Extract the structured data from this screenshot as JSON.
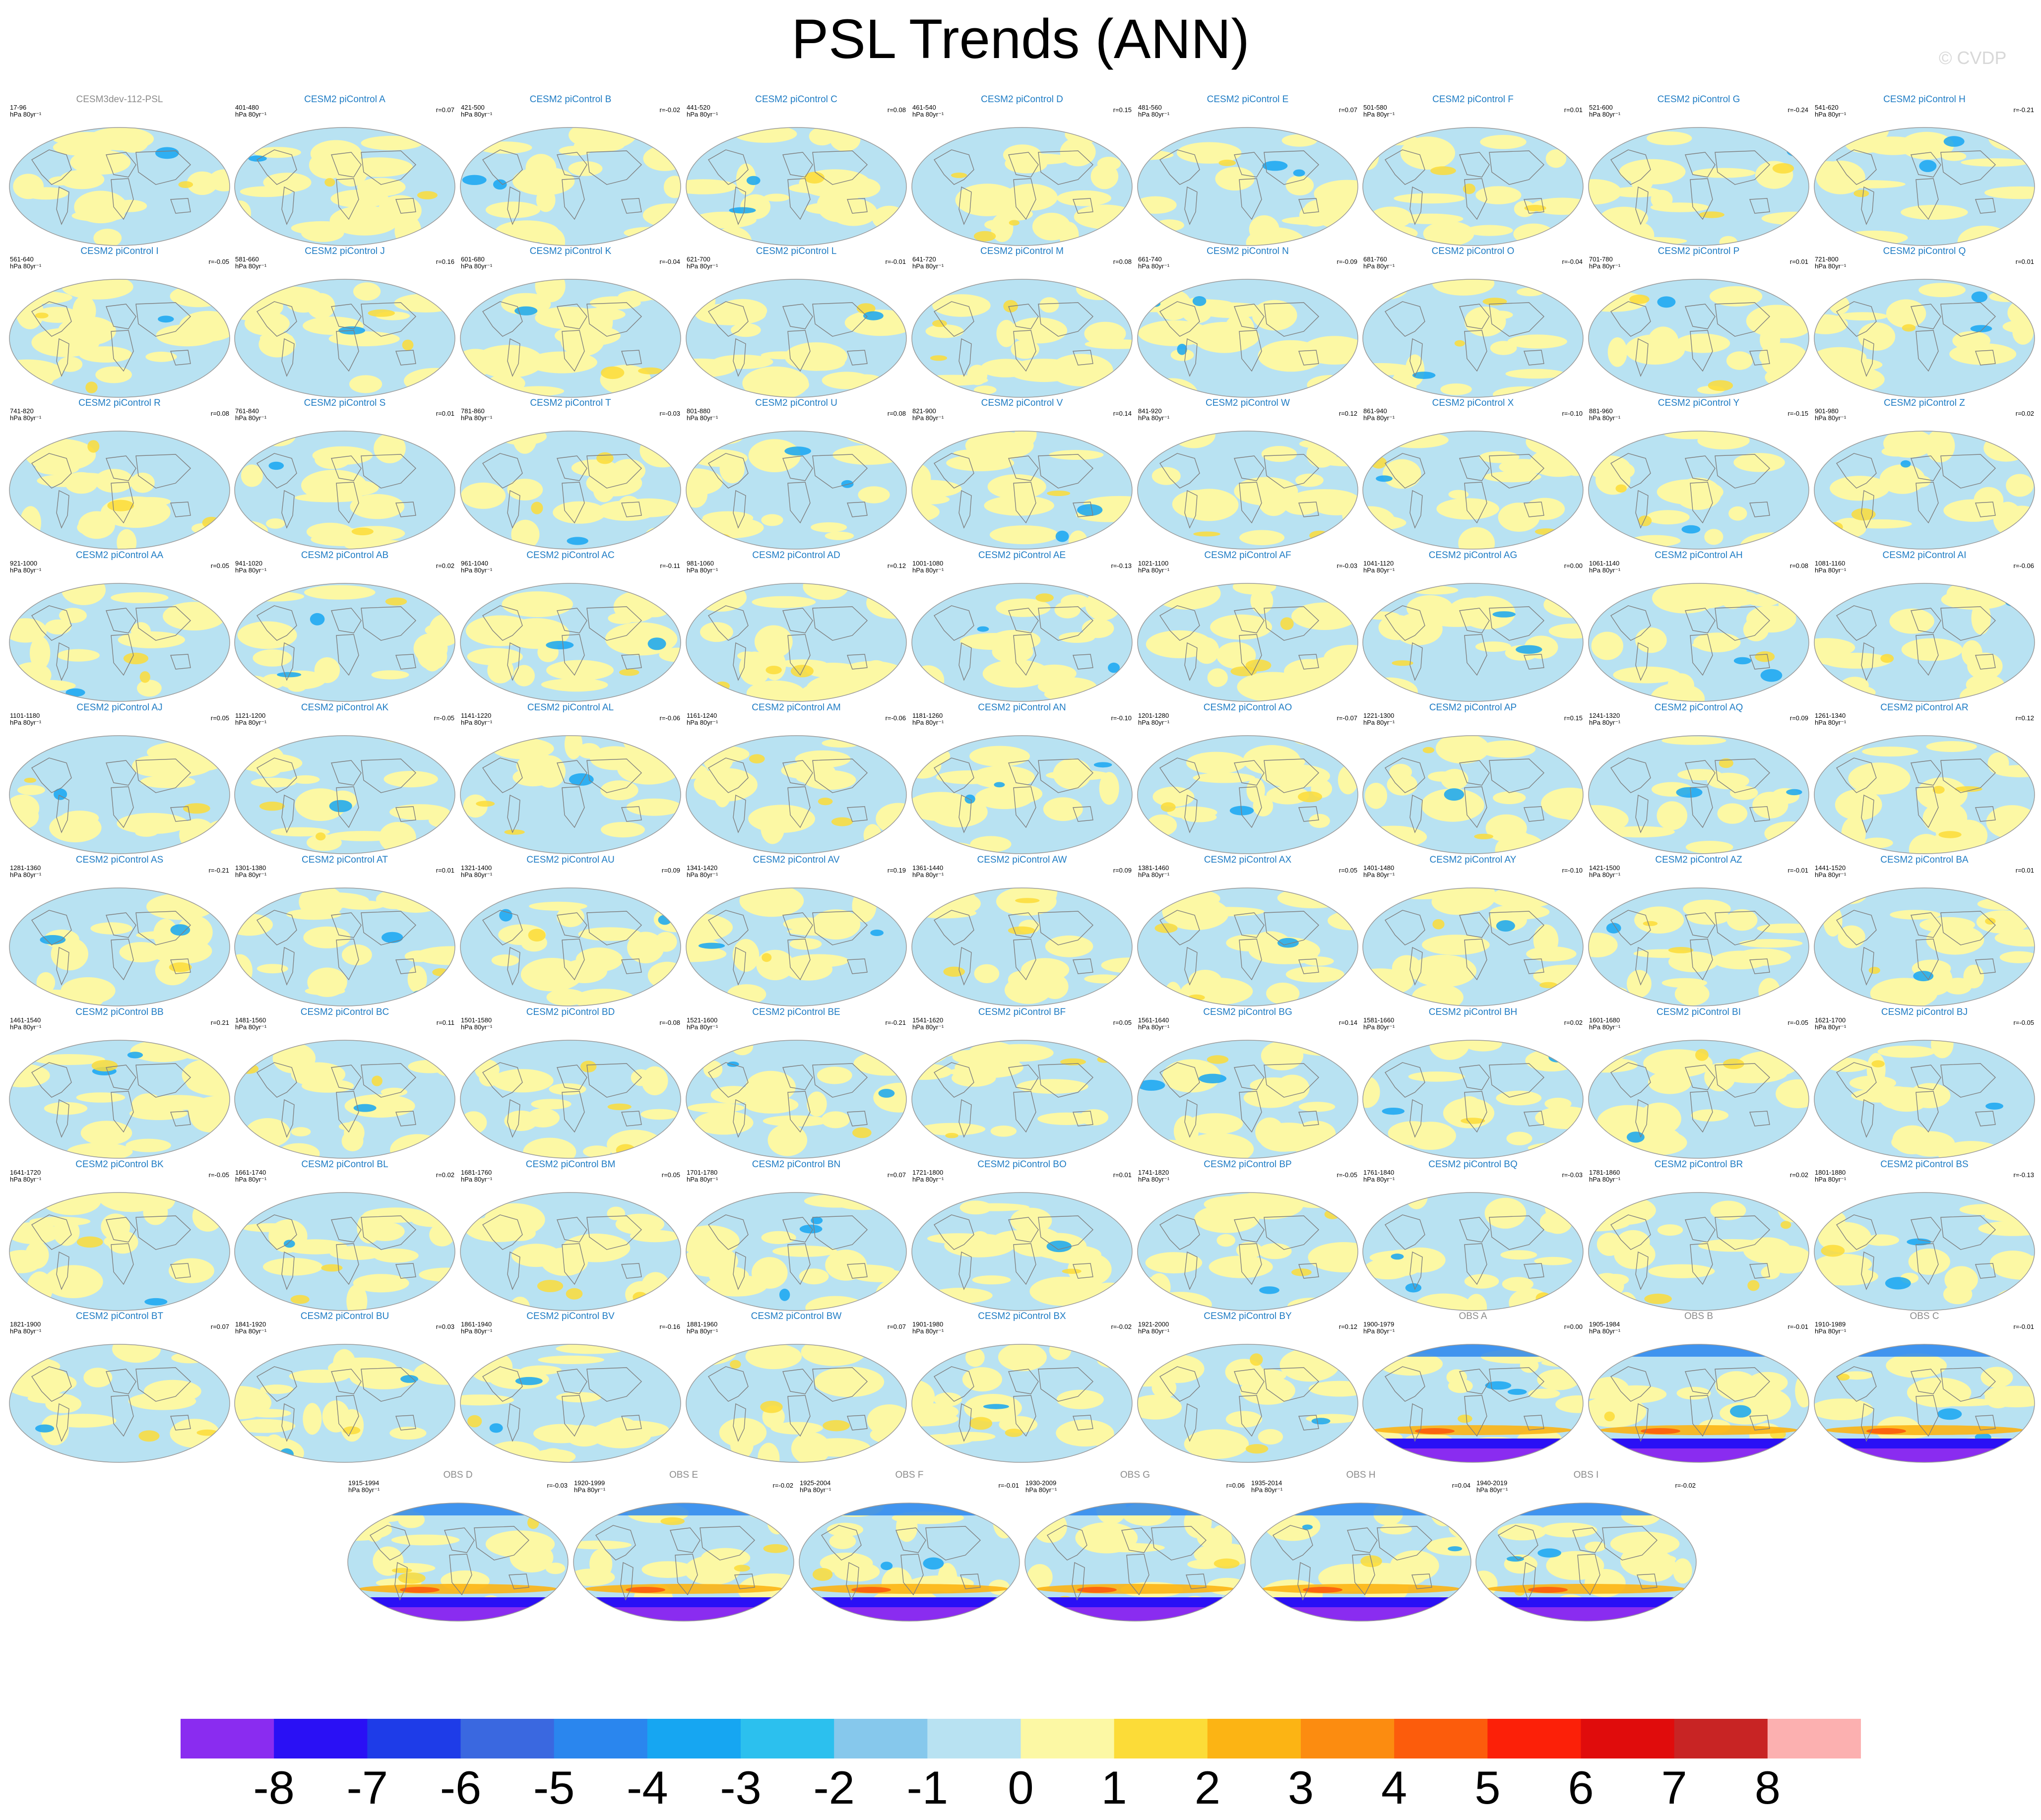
{
  "title": "PSL Trends (ANN)",
  "copyright": "© CVDP",
  "colors": {
    "title_model": "#1f7cc4",
    "title_grey": "#8c8c8c",
    "coast": "#7f7f7f"
  },
  "chart_data": {
    "type": "heatmap",
    "units": "hPa 80yr⁻¹",
    "panels": [
      {
        "title": "CESM3dev-112-PSL",
        "years": "17-96",
        "r": "",
        "kind": "ref"
      },
      {
        "title": "CESM2 piControl A",
        "years": "401-480",
        "r": "r=0.07",
        "kind": "model"
      },
      {
        "title": "CESM2 piControl B",
        "years": "421-500",
        "r": "r=-0.02",
        "kind": "model"
      },
      {
        "title": "CESM2 piControl C",
        "years": "441-520",
        "r": "r=0.08",
        "kind": "model"
      },
      {
        "title": "CESM2 piControl D",
        "years": "461-540",
        "r": "r=0.15",
        "kind": "model"
      },
      {
        "title": "CESM2 piControl E",
        "years": "481-560",
        "r": "r=0.07",
        "kind": "model"
      },
      {
        "title": "CESM2 piControl F",
        "years": "501-580",
        "r": "r=0.01",
        "kind": "model"
      },
      {
        "title": "CESM2 piControl G",
        "years": "521-600",
        "r": "r=-0.24",
        "kind": "model"
      },
      {
        "title": "CESM2 piControl H",
        "years": "541-620",
        "r": "r=-0.21",
        "kind": "model"
      },
      {
        "title": "CESM2 piControl I",
        "years": "561-640",
        "r": "r=-0.05",
        "kind": "model"
      },
      {
        "title": "CESM2 piControl J",
        "years": "581-660",
        "r": "r=0.16",
        "kind": "model"
      },
      {
        "title": "CESM2 piControl K",
        "years": "601-680",
        "r": "r=-0.04",
        "kind": "model"
      },
      {
        "title": "CESM2 piControl L",
        "years": "621-700",
        "r": "r=-0.01",
        "kind": "model"
      },
      {
        "title": "CESM2 piControl M",
        "years": "641-720",
        "r": "r=0.08",
        "kind": "model"
      },
      {
        "title": "CESM2 piControl N",
        "years": "661-740",
        "r": "r=-0.09",
        "kind": "model"
      },
      {
        "title": "CESM2 piControl O",
        "years": "681-760",
        "r": "r=-0.04",
        "kind": "model"
      },
      {
        "title": "CESM2 piControl P",
        "years": "701-780",
        "r": "r=0.01",
        "kind": "model"
      },
      {
        "title": "CESM2 piControl Q",
        "years": "721-800",
        "r": "r=0.01",
        "kind": "model"
      },
      {
        "title": "CESM2 piControl R",
        "years": "741-820",
        "r": "r=0.08",
        "kind": "model"
      },
      {
        "title": "CESM2 piControl S",
        "years": "761-840",
        "r": "r=0.01",
        "kind": "model"
      },
      {
        "title": "CESM2 piControl T",
        "years": "781-860",
        "r": "r=-0.03",
        "kind": "model"
      },
      {
        "title": "CESM2 piControl U",
        "years": "801-880",
        "r": "r=0.08",
        "kind": "model"
      },
      {
        "title": "CESM2 piControl V",
        "years": "821-900",
        "r": "r=0.14",
        "kind": "model"
      },
      {
        "title": "CESM2 piControl W",
        "years": "841-920",
        "r": "r=0.12",
        "kind": "model"
      },
      {
        "title": "CESM2 piControl X",
        "years": "861-940",
        "r": "r=-0.10",
        "kind": "model"
      },
      {
        "title": "CESM2 piControl Y",
        "years": "881-960",
        "r": "r=-0.15",
        "kind": "model"
      },
      {
        "title": "CESM2 piControl Z",
        "years": "901-980",
        "r": "r=0.02",
        "kind": "model"
      },
      {
        "title": "CESM2 piControl AA",
        "years": "921-1000",
        "r": "r=0.05",
        "kind": "model"
      },
      {
        "title": "CESM2 piControl AB",
        "years": "941-1020",
        "r": "r=0.02",
        "kind": "model"
      },
      {
        "title": "CESM2 piControl AC",
        "years": "961-1040",
        "r": "r=-0.11",
        "kind": "model"
      },
      {
        "title": "CESM2 piControl AD",
        "years": "981-1060",
        "r": "r=0.12",
        "kind": "model"
      },
      {
        "title": "CESM2 piControl AE",
        "years": "1001-1080",
        "r": "r=-0.13",
        "kind": "model"
      },
      {
        "title": "CESM2 piControl AF",
        "years": "1021-1100",
        "r": "r=-0.03",
        "kind": "model"
      },
      {
        "title": "CESM2 piControl AG",
        "years": "1041-1120",
        "r": "r=0.00",
        "kind": "model"
      },
      {
        "title": "CESM2 piControl AH",
        "years": "1061-1140",
        "r": "r=0.08",
        "kind": "model"
      },
      {
        "title": "CESM2 piControl AI",
        "years": "1081-1160",
        "r": "r=-0.06",
        "kind": "model"
      },
      {
        "title": "CESM2 piControl AJ",
        "years": "1101-1180",
        "r": "r=0.05",
        "kind": "model"
      },
      {
        "title": "CESM2 piControl AK",
        "years": "1121-1200",
        "r": "r=-0.05",
        "kind": "model"
      },
      {
        "title": "CESM2 piControl AL",
        "years": "1141-1220",
        "r": "r=-0.06",
        "kind": "model"
      },
      {
        "title": "CESM2 piControl AM",
        "years": "1161-1240",
        "r": "r=-0.06",
        "kind": "model"
      },
      {
        "title": "CESM2 piControl AN",
        "years": "1181-1260",
        "r": "r=-0.10",
        "kind": "model"
      },
      {
        "title": "CESM2 piControl AO",
        "years": "1201-1280",
        "r": "r=-0.07",
        "kind": "model"
      },
      {
        "title": "CESM2 piControl AP",
        "years": "1221-1300",
        "r": "r=0.15",
        "kind": "model"
      },
      {
        "title": "CESM2 piControl AQ",
        "years": "1241-1320",
        "r": "r=0.09",
        "kind": "model"
      },
      {
        "title": "CESM2 piControl AR",
        "years": "1261-1340",
        "r": "r=0.12",
        "kind": "model"
      },
      {
        "title": "CESM2 piControl AS",
        "years": "1281-1360",
        "r": "r=-0.21",
        "kind": "model"
      },
      {
        "title": "CESM2 piControl AT",
        "years": "1301-1380",
        "r": "r=0.01",
        "kind": "model"
      },
      {
        "title": "CESM2 piControl AU",
        "years": "1321-1400",
        "r": "r=0.09",
        "kind": "model"
      },
      {
        "title": "CESM2 piControl AV",
        "years": "1341-1420",
        "r": "r=0.19",
        "kind": "model"
      },
      {
        "title": "CESM2 piControl AW",
        "years": "1361-1440",
        "r": "r=0.09",
        "kind": "model"
      },
      {
        "title": "CESM2 piControl AX",
        "years": "1381-1460",
        "r": "r=0.05",
        "kind": "model"
      },
      {
        "title": "CESM2 piControl AY",
        "years": "1401-1480",
        "r": "r=-0.10",
        "kind": "model"
      },
      {
        "title": "CESM2 piControl AZ",
        "years": "1421-1500",
        "r": "r=-0.01",
        "kind": "model"
      },
      {
        "title": "CESM2 piControl BA",
        "years": "1441-1520",
        "r": "r=0.01",
        "kind": "model"
      },
      {
        "title": "CESM2 piControl BB",
        "years": "1461-1540",
        "r": "r=0.21",
        "kind": "model"
      },
      {
        "title": "CESM2 piControl BC",
        "years": "1481-1560",
        "r": "r=0.11",
        "kind": "model"
      },
      {
        "title": "CESM2 piControl BD",
        "years": "1501-1580",
        "r": "r=-0.08",
        "kind": "model"
      },
      {
        "title": "CESM2 piControl BE",
        "years": "1521-1600",
        "r": "r=-0.21",
        "kind": "model"
      },
      {
        "title": "CESM2 piControl BF",
        "years": "1541-1620",
        "r": "r=0.05",
        "kind": "model"
      },
      {
        "title": "CESM2 piControl BG",
        "years": "1561-1640",
        "r": "r=0.14",
        "kind": "model"
      },
      {
        "title": "CESM2 piControl BH",
        "years": "1581-1660",
        "r": "r=0.02",
        "kind": "model"
      },
      {
        "title": "CESM2 piControl BI",
        "years": "1601-1680",
        "r": "r=-0.05",
        "kind": "model"
      },
      {
        "title": "CESM2 piControl BJ",
        "years": "1621-1700",
        "r": "r=-0.05",
        "kind": "model"
      },
      {
        "title": "CESM2 piControl BK",
        "years": "1641-1720",
        "r": "r=-0.05",
        "kind": "model"
      },
      {
        "title": "CESM2 piControl BL",
        "years": "1661-1740",
        "r": "r=0.02",
        "kind": "model"
      },
      {
        "title": "CESM2 piControl BM",
        "years": "1681-1760",
        "r": "r=0.05",
        "kind": "model"
      },
      {
        "title": "CESM2 piControl BN",
        "years": "1701-1780",
        "r": "r=0.07",
        "kind": "model"
      },
      {
        "title": "CESM2 piControl BO",
        "years": "1721-1800",
        "r": "r=0.01",
        "kind": "model"
      },
      {
        "title": "CESM2 piControl BP",
        "years": "1741-1820",
        "r": "r=-0.05",
        "kind": "model"
      },
      {
        "title": "CESM2 piControl BQ",
        "years": "1761-1840",
        "r": "r=-0.03",
        "kind": "model"
      },
      {
        "title": "CESM2 piControl BR",
        "years": "1781-1860",
        "r": "r=0.02",
        "kind": "model"
      },
      {
        "title": "CESM2 piControl BS",
        "years": "1801-1880",
        "r": "r=-0.13",
        "kind": "model"
      },
      {
        "title": "CESM2 piControl BT",
        "years": "1821-1900",
        "r": "r=0.07",
        "kind": "model"
      },
      {
        "title": "CESM2 piControl BU",
        "years": "1841-1920",
        "r": "r=0.03",
        "kind": "model"
      },
      {
        "title": "CESM2 piControl BV",
        "years": "1861-1940",
        "r": "r=-0.16",
        "kind": "model"
      },
      {
        "title": "CESM2 piControl BW",
        "years": "1881-1960",
        "r": "r=0.07",
        "kind": "model"
      },
      {
        "title": "CESM2 piControl BX",
        "years": "1901-1980",
        "r": "r=-0.02",
        "kind": "model"
      },
      {
        "title": "CESM2 piControl BY",
        "years": "1921-2000",
        "r": "r=0.12",
        "kind": "model"
      },
      {
        "title": "OBS A",
        "years": "1900-1979",
        "r": "r=0.00",
        "kind": "obs"
      },
      {
        "title": "OBS B",
        "years": "1905-1984",
        "r": "r=-0.01",
        "kind": "obs"
      },
      {
        "title": "OBS C",
        "years": "1910-1989",
        "r": "r=-0.01",
        "kind": "obs"
      },
      {
        "title": "OBS D",
        "years": "1915-1994",
        "r": "r=-0.03",
        "kind": "obs"
      },
      {
        "title": "OBS E",
        "years": "1920-1999",
        "r": "r=-0.02",
        "kind": "obs"
      },
      {
        "title": "OBS F",
        "years": "1925-2004",
        "r": "r=-0.01",
        "kind": "obs"
      },
      {
        "title": "OBS G",
        "years": "1930-2009",
        "r": "r=0.06",
        "kind": "obs"
      },
      {
        "title": "OBS H",
        "years": "1935-2014",
        "r": "r=0.04",
        "kind": "obs"
      },
      {
        "title": "OBS I",
        "years": "1940-2019",
        "r": "r=-0.02",
        "kind": "obs"
      }
    ],
    "colorbar": {
      "labels": [
        "-8",
        "-7",
        "-6",
        "-5",
        "-4",
        "-3",
        "-2",
        "-1",
        "0",
        "1",
        "2",
        "3",
        "4",
        "5",
        "6",
        "7",
        "8"
      ],
      "colors": [
        "#8a2cf0",
        "#2a10f5",
        "#1e3ce8",
        "#3a68e0",
        "#2a86ee",
        "#16a6f2",
        "#2cc0ee",
        "#86c8ec",
        "#b8e2f2",
        "#fcf8a4",
        "#fcdc38",
        "#fcb414",
        "#fc8c10",
        "#fc5c0c",
        "#fc2008",
        "#e00c0c",
        "#c82424",
        "#fcb0b0"
      ]
    }
  }
}
